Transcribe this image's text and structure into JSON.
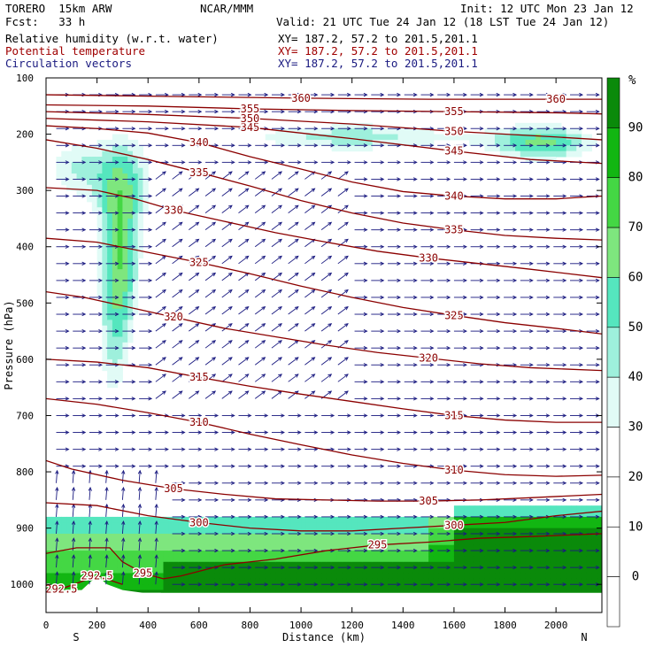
{
  "header": {
    "model": "TORERO  15km ARW",
    "center": "NCAR/MMM",
    "init": "Init: 12 UTC Mon 23 Jan 12",
    "fcst": "Fcst:   33 h",
    "valid": "Valid: 21 UTC Tue 24 Jan 12 (18 LST Tue 24 Jan 12)"
  },
  "fields": [
    {
      "name": "Relative humidity (w.r.t. water)",
      "xy": "XY= 187.2, 57.2 to 201.5,201.1",
      "color": "#000000"
    },
    {
      "name": "Potential temperature",
      "xy": "XY= 187.2, 57.2 to 201.5,201.1",
      "color": "#a00000"
    },
    {
      "name": "Circulation vectors",
      "xy": "XY= 187.2, 57.2 to 201.5,201.1",
      "color": "#1a1a80"
    }
  ],
  "chart_data": {
    "type": "cross-section",
    "xlabel": "Distance (km)",
    "ylabel": "Pressure (hPa)",
    "xlim": [
      0,
      2180
    ],
    "ylim": [
      1050,
      100
    ],
    "x_ticks": [
      0,
      200,
      400,
      600,
      800,
      1000,
      1200,
      1400,
      1600,
      1800,
      2000
    ],
    "y_ticks": [
      100,
      200,
      300,
      400,
      500,
      600,
      700,
      800,
      900,
      1000
    ],
    "x_end_labels": {
      "left": "S",
      "right": "N"
    },
    "rh_colorbar": {
      "unit": "%",
      "levels": [
        0,
        10,
        20,
        30,
        40,
        50,
        60,
        70,
        80,
        90
      ],
      "colors": [
        "#ffffff",
        "#ffffff",
        "#ffffff",
        "#e1fbf6",
        "#9ef0dc",
        "#55e6be",
        "#7ee67e",
        "#44d744",
        "#12b612",
        "#0a8a0a"
      ]
    },
    "theta_isentropes": [
      {
        "label": "292.5",
        "points": [
          [
            0,
            1008
          ],
          [
            60,
            1008
          ],
          [
            200,
            985
          ],
          [
            300,
            1000
          ]
        ]
      },
      {
        "label": "295",
        "points": [
          [
            0,
            945
          ],
          [
            120,
            935
          ],
          [
            250,
            935
          ],
          [
            300,
            960
          ],
          [
            380,
            980
          ],
          [
            460,
            990
          ],
          [
            530,
            985
          ],
          [
            700,
            965
          ],
          [
            900,
            955
          ],
          [
            1100,
            940
          ],
          [
            1300,
            930
          ],
          [
            1500,
            925
          ],
          [
            1700,
            918
          ],
          [
            1900,
            915
          ],
          [
            2180,
            910
          ]
        ]
      },
      {
        "label": "300",
        "points": [
          [
            0,
            855
          ],
          [
            200,
            860
          ],
          [
            400,
            878
          ],
          [
            600,
            890
          ],
          [
            800,
            900
          ],
          [
            1000,
            905
          ],
          [
            1200,
            905
          ],
          [
            1400,
            900
          ],
          [
            1600,
            895
          ],
          [
            1800,
            890
          ],
          [
            2000,
            878
          ],
          [
            2180,
            870
          ]
        ]
      },
      {
        "label": "305",
        "points": [
          [
            0,
            780
          ],
          [
            100,
            795
          ],
          [
            300,
            815
          ],
          [
            500,
            830
          ],
          [
            700,
            840
          ],
          [
            900,
            848
          ],
          [
            1100,
            850
          ],
          [
            1300,
            852
          ],
          [
            1500,
            852
          ],
          [
            1700,
            850
          ],
          [
            1900,
            846
          ],
          [
            2180,
            840
          ]
        ]
      },
      {
        "label": "310",
        "points": [
          [
            0,
            670
          ],
          [
            200,
            680
          ],
          [
            400,
            695
          ],
          [
            600,
            712
          ],
          [
            800,
            733
          ],
          [
            1000,
            752
          ],
          [
            1200,
            770
          ],
          [
            1400,
            785
          ],
          [
            1600,
            797
          ],
          [
            1800,
            805
          ],
          [
            2000,
            808
          ],
          [
            2180,
            806
          ]
        ]
      },
      {
        "label": "315",
        "points": [
          [
            0,
            600
          ],
          [
            200,
            605
          ],
          [
            400,
            615
          ],
          [
            600,
            632
          ],
          [
            800,
            648
          ],
          [
            1000,
            662
          ],
          [
            1200,
            675
          ],
          [
            1400,
            688
          ],
          [
            1600,
            700
          ],
          [
            1800,
            708
          ],
          [
            2000,
            712
          ],
          [
            2180,
            712
          ]
        ]
      },
      {
        "label": "320",
        "points": [
          [
            0,
            480
          ],
          [
            150,
            490
          ],
          [
            300,
            505
          ],
          [
            500,
            525
          ],
          [
            700,
            545
          ],
          [
            900,
            560
          ],
          [
            1100,
            575
          ],
          [
            1300,
            588
          ],
          [
            1500,
            598
          ],
          [
            1700,
            608
          ],
          [
            1900,
            615
          ],
          [
            2180,
            620
          ]
        ]
      },
      {
        "label": "325",
        "points": [
          [
            0,
            385
          ],
          [
            200,
            392
          ],
          [
            400,
            410
          ],
          [
            600,
            428
          ],
          [
            800,
            448
          ],
          [
            1000,
            470
          ],
          [
            1200,
            490
          ],
          [
            1400,
            508
          ],
          [
            1600,
            522
          ],
          [
            1800,
            535
          ],
          [
            2000,
            545
          ],
          [
            2180,
            555
          ]
        ]
      },
      {
        "label": "330",
        "points": [
          [
            0,
            295
          ],
          [
            200,
            300
          ],
          [
            350,
            315
          ],
          [
            500,
            335
          ],
          [
            700,
            355
          ],
          [
            900,
            375
          ],
          [
            1100,
            392
          ],
          [
            1300,
            408
          ],
          [
            1500,
            420
          ],
          [
            1700,
            430
          ],
          [
            1900,
            440
          ],
          [
            2180,
            455
          ]
        ]
      },
      {
        "label": "335",
        "points": [
          [
            0,
            210
          ],
          [
            200,
            225
          ],
          [
            400,
            245
          ],
          [
            600,
            268
          ],
          [
            800,
            292
          ],
          [
            1000,
            318
          ],
          [
            1200,
            340
          ],
          [
            1400,
            358
          ],
          [
            1600,
            370
          ],
          [
            1800,
            380
          ],
          [
            2000,
            385
          ],
          [
            2180,
            388
          ]
        ]
      },
      {
        "label": "340",
        "points": [
          [
            0,
            185
          ],
          [
            200,
            190
          ],
          [
            400,
            198
          ],
          [
            600,
            215
          ],
          [
            800,
            240
          ],
          [
            1000,
            262
          ],
          [
            1200,
            285
          ],
          [
            1400,
            302
          ],
          [
            1600,
            310
          ],
          [
            1800,
            315
          ],
          [
            2000,
            315
          ],
          [
            2180,
            310
          ]
        ]
      },
      {
        "label": "345",
        "points": [
          [
            0,
            172
          ],
          [
            400,
            178
          ],
          [
            800,
            188
          ],
          [
            1200,
            208
          ],
          [
            1600,
            230
          ],
          [
            1900,
            245
          ],
          [
            2180,
            252
          ]
        ]
      },
      {
        "label": "350",
        "points": [
          [
            0,
            160
          ],
          [
            400,
            165
          ],
          [
            800,
            172
          ],
          [
            1200,
            182
          ],
          [
            1600,
            195
          ],
          [
            2000,
            205
          ],
          [
            2180,
            210
          ]
        ]
      },
      {
        "label": "355",
        "points": [
          [
            0,
            148
          ],
          [
            400,
            150
          ],
          [
            800,
            155
          ],
          [
            1200,
            158
          ],
          [
            1600,
            160
          ],
          [
            2000,
            162
          ],
          [
            2180,
            164
          ]
        ]
      },
      {
        "label": "360",
        "points": [
          [
            0,
            130
          ],
          [
            500,
            133
          ],
          [
            1000,
            136
          ],
          [
            1500,
            138
          ],
          [
            2000,
            138
          ],
          [
            2180,
            138
          ]
        ]
      }
    ]
  }
}
